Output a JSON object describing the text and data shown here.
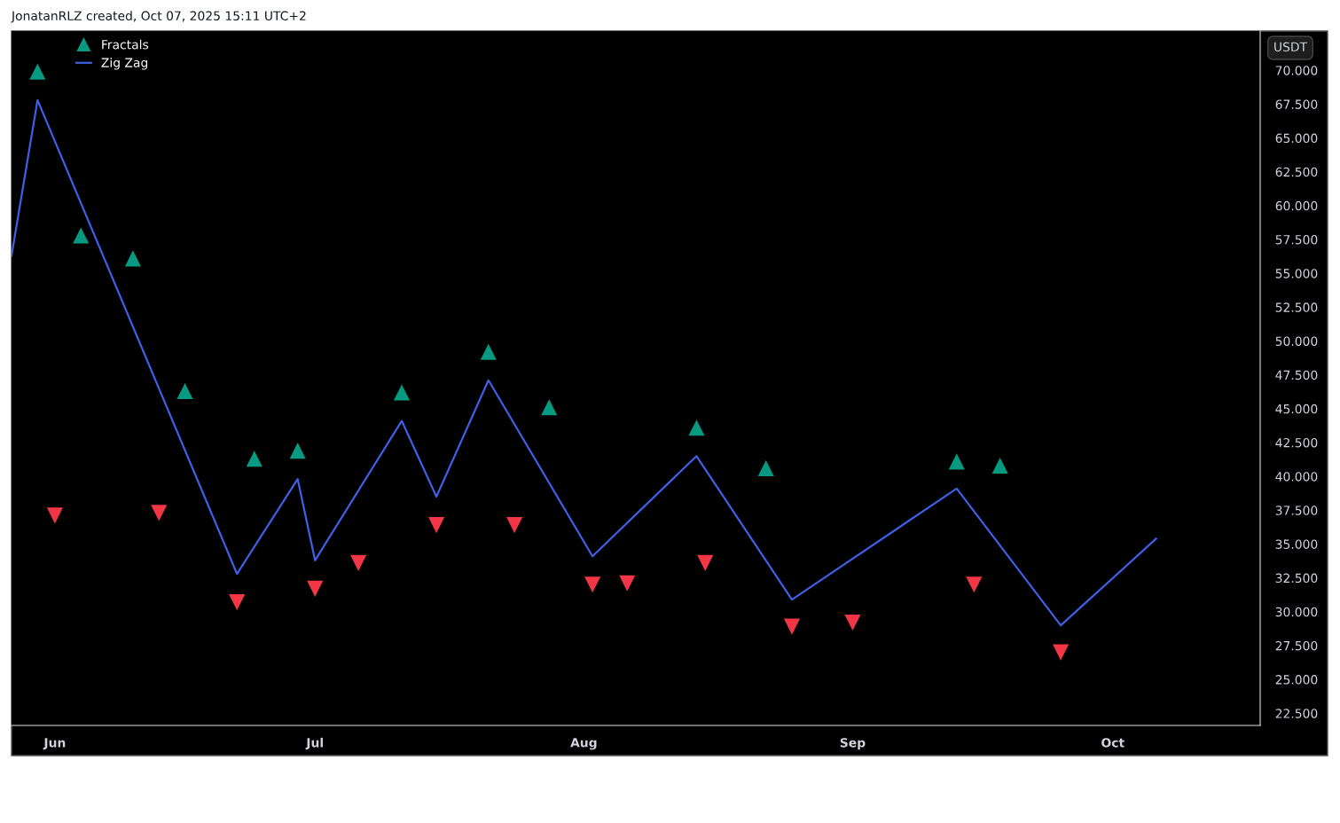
{
  "chart_data": {
    "type": "line",
    "ylabel": "USDT",
    "annotations": [
      "JonatanRLZ created, Oct 07, 2025 15:11 UTC+2"
    ],
    "xlim": [
      "2025-05-27",
      "2025-10-18"
    ],
    "xticks": [
      {
        "value": "2025-06-01",
        "label": "Jun"
      },
      {
        "value": "2025-07-01",
        "label": "Jul"
      },
      {
        "value": "2025-08-01",
        "label": "Aug"
      },
      {
        "value": "2025-09-01",
        "label": "Sep"
      },
      {
        "value": "2025-10-01",
        "label": "Oct"
      }
    ],
    "ylim": [
      21.6,
      72.9
    ],
    "yticks": [
      {
        "value": 22.5,
        "label": "22.500"
      },
      {
        "value": 25,
        "label": "25.000"
      },
      {
        "value": 27.5,
        "label": "27.500"
      },
      {
        "value": 30,
        "label": "30.000"
      },
      {
        "value": 32.5,
        "label": "32.500"
      },
      {
        "value": 35,
        "label": "35.000"
      },
      {
        "value": 37.5,
        "label": "37.500"
      },
      {
        "value": 40,
        "label": "40.000"
      },
      {
        "value": 42.5,
        "label": "42.500"
      },
      {
        "value": 45,
        "label": "45.000"
      },
      {
        "value": 47.5,
        "label": "47.500"
      },
      {
        "value": 50,
        "label": "50.000"
      },
      {
        "value": 52.5,
        "label": "52.500"
      },
      {
        "value": 55,
        "label": "55.000"
      },
      {
        "value": 57.5,
        "label": "57.500"
      },
      {
        "value": 60,
        "label": "60.000"
      },
      {
        "value": 62.5,
        "label": "62.500"
      },
      {
        "value": 65,
        "label": "65.000"
      },
      {
        "value": 67.5,
        "label": "67.500"
      },
      {
        "value": 70,
        "label": "70.000"
      }
    ],
    "grid": false,
    "legend": "top left",
    "series": [
      {
        "name": "Fractals",
        "type": "scatter",
        "marker": "triangle",
        "color": "#089981",
        "x": [
          "2025-05-30",
          "2025-06-04",
          "2025-06-10",
          "2025-06-16",
          "2025-06-24",
          "2025-06-29",
          "2025-07-11",
          "2025-07-21",
          "2025-07-28",
          "2025-08-14",
          "2025-08-22",
          "2025-09-13",
          "2025-09-18"
        ],
        "values": [
          69.9,
          57.8,
          56.1,
          46.3,
          41.3,
          41.9,
          46.2,
          49.2,
          45.1,
          43.6,
          40.6,
          41.1,
          40.8
        ]
      },
      {
        "type": "scatter",
        "marker": "triangle_down",
        "color": "#f23645",
        "x": [
          "2025-06-01",
          "2025-06-13",
          "2025-06-22",
          "2025-07-01",
          "2025-07-06",
          "2025-07-15",
          "2025-07-24",
          "2025-08-02",
          "2025-08-06",
          "2025-08-15",
          "2025-08-25",
          "2025-09-01",
          "2025-09-15",
          "2025-09-25"
        ],
        "values": [
          37.1,
          37.3,
          30.7,
          31.7,
          33.6,
          36.4,
          36.4,
          32.0,
          32.1,
          33.6,
          28.9,
          29.2,
          32.0,
          27.0
        ]
      },
      {
        "name": "Zig Zag",
        "marker": "none",
        "line_style": "solid",
        "color": "#3f5fe6",
        "x": [
          "2025-05-27",
          "2025-05-30",
          "2025-06-22",
          "2025-06-29",
          "2025-07-01",
          "2025-07-11",
          "2025-07-15",
          "2025-07-21",
          "2025-08-02",
          "2025-08-14",
          "2025-08-25",
          "2025-09-13",
          "2025-09-25",
          "2025-10-06"
        ],
        "values": [
          56.3,
          67.8,
          32.8,
          39.8,
          33.8,
          44.1,
          38.5,
          47.1,
          34.1,
          41.5,
          30.9,
          39.1,
          29.0,
          35.4
        ]
      }
    ]
  }
}
